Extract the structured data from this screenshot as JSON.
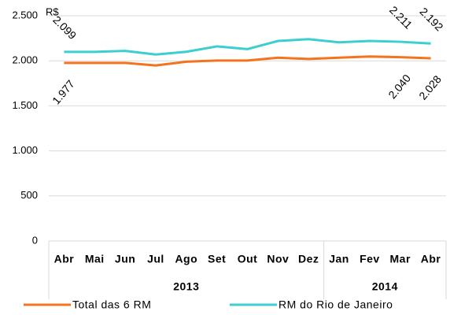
{
  "chart_data": {
    "type": "line",
    "y_unit": "R$",
    "categories": [
      "Abr",
      "Mai",
      "Jun",
      "Jul",
      "Ago",
      "Set",
      "Out",
      "Nov",
      "Dez",
      "Jan",
      "Fev",
      "Mar",
      "Abr"
    ],
    "groups": [
      {
        "label": "2013",
        "span": 9
      },
      {
        "label": "2014",
        "span": 4
      }
    ],
    "series": [
      {
        "name": "Total das 6 RM",
        "color": "#f4731f",
        "label_color": "#a5410f",
        "values": [
          1977,
          1977,
          1977,
          1948,
          1990,
          2003,
          2003,
          2035,
          2020,
          2035,
          2048,
          2040,
          2028
        ],
        "value_labels": [
          "1.977",
          null,
          null,
          null,
          null,
          null,
          null,
          null,
          null,
          null,
          null,
          "2.040",
          "2.028"
        ]
      },
      {
        "name": "RM do Rio de Janeiro",
        "color": "#3ccfd0",
        "label_color": "#1f6fb8",
        "values": [
          2099,
          2099,
          2110,
          2070,
          2100,
          2160,
          2130,
          2220,
          2240,
          2205,
          2220,
          2211,
          2192
        ],
        "value_labels": [
          "2.099",
          null,
          null,
          null,
          null,
          null,
          null,
          null,
          null,
          null,
          null,
          "2.211",
          "2.192"
        ]
      }
    ],
    "ylim": [
      0,
      2500
    ],
    "yticks": [
      0,
      500,
      {
        "value": 1000,
        "label": "1.000"
      },
      {
        "value": 1500,
        "label": "1.500"
      },
      {
        "value": 2000,
        "label": "2.000"
      },
      {
        "value": 2500,
        "label": "2.500"
      }
    ],
    "grid": true,
    "legend": "bottom"
  }
}
